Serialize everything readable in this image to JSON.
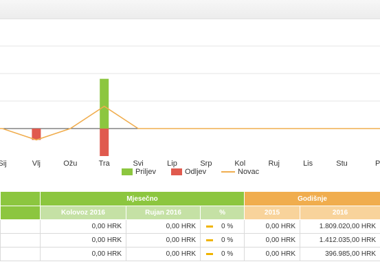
{
  "colors": {
    "priljev": "#8cc63f",
    "odljev": "#e05a4e",
    "novac": "#f0ad4e"
  },
  "legend": [
    {
      "label": "Priljev",
      "type": "bar",
      "color": "#8cc63f"
    },
    {
      "label": "Odljev",
      "type": "bar",
      "color": "#e05a4e"
    },
    {
      "label": "Novac",
      "type": "line",
      "color": "#f0ad4e"
    }
  ],
  "chart_data": {
    "type": "bar",
    "categories": [
      "Sij",
      "Velj",
      "Ožu",
      "Tra",
      "Svi",
      "Lip",
      "Srp",
      "Kol",
      "Ruj",
      "Lis",
      "Stu",
      "Pro"
    ],
    "visible_tick_labels": [
      "Sij",
      "Vlj",
      "Ožu",
      "Tra",
      "Svi",
      "Lip",
      "Srp",
      "Kol",
      "Ruj",
      "Lis",
      "Stu",
      "P"
    ],
    "series": [
      {
        "name": "Priljev",
        "type": "bar",
        "values": [
          0,
          0,
          0,
          1809020,
          0,
          0,
          0,
          0,
          0,
          0,
          0,
          0
        ]
      },
      {
        "name": "Odljev",
        "type": "bar",
        "values": [
          0,
          -412035,
          0,
          -1000000,
          0,
          0,
          0,
          0,
          0,
          0,
          0,
          0
        ]
      },
      {
        "name": "Novac",
        "type": "line",
        "values": [
          0,
          -412035,
          0,
          809020,
          0,
          0,
          0,
          0,
          0,
          0,
          0,
          0
        ]
      }
    ],
    "ylim": [
      -1300000,
      4000000
    ],
    "grid": true,
    "legend_position": "bottom"
  },
  "table": {
    "group_headers": {
      "monthly": "Mjesečno",
      "yearly": "Godišnje"
    },
    "sub_headers": [
      "Kolovoz 2016",
      "Rujan 2016",
      "%",
      "2015",
      "2016"
    ],
    "rows": [
      {
        "kolovoz": "0,00 HRK",
        "rujan": "0,00 HRK",
        "pct": "0 %",
        "y2015": "0,00 HRK",
        "y2016": "1.809.020,00 HRK"
      },
      {
        "kolovoz": "0,00 HRK",
        "rujan": "0,00 HRK",
        "pct": "0 %",
        "y2015": "0,00 HRK",
        "y2016": "1.412.035,00 HRK"
      },
      {
        "kolovoz": "0,00 HRK",
        "rujan": "0,00 HRK",
        "pct": "0 %",
        "y2015": "0,00 HRK",
        "y2016": "396.985,00 HRK"
      }
    ]
  }
}
